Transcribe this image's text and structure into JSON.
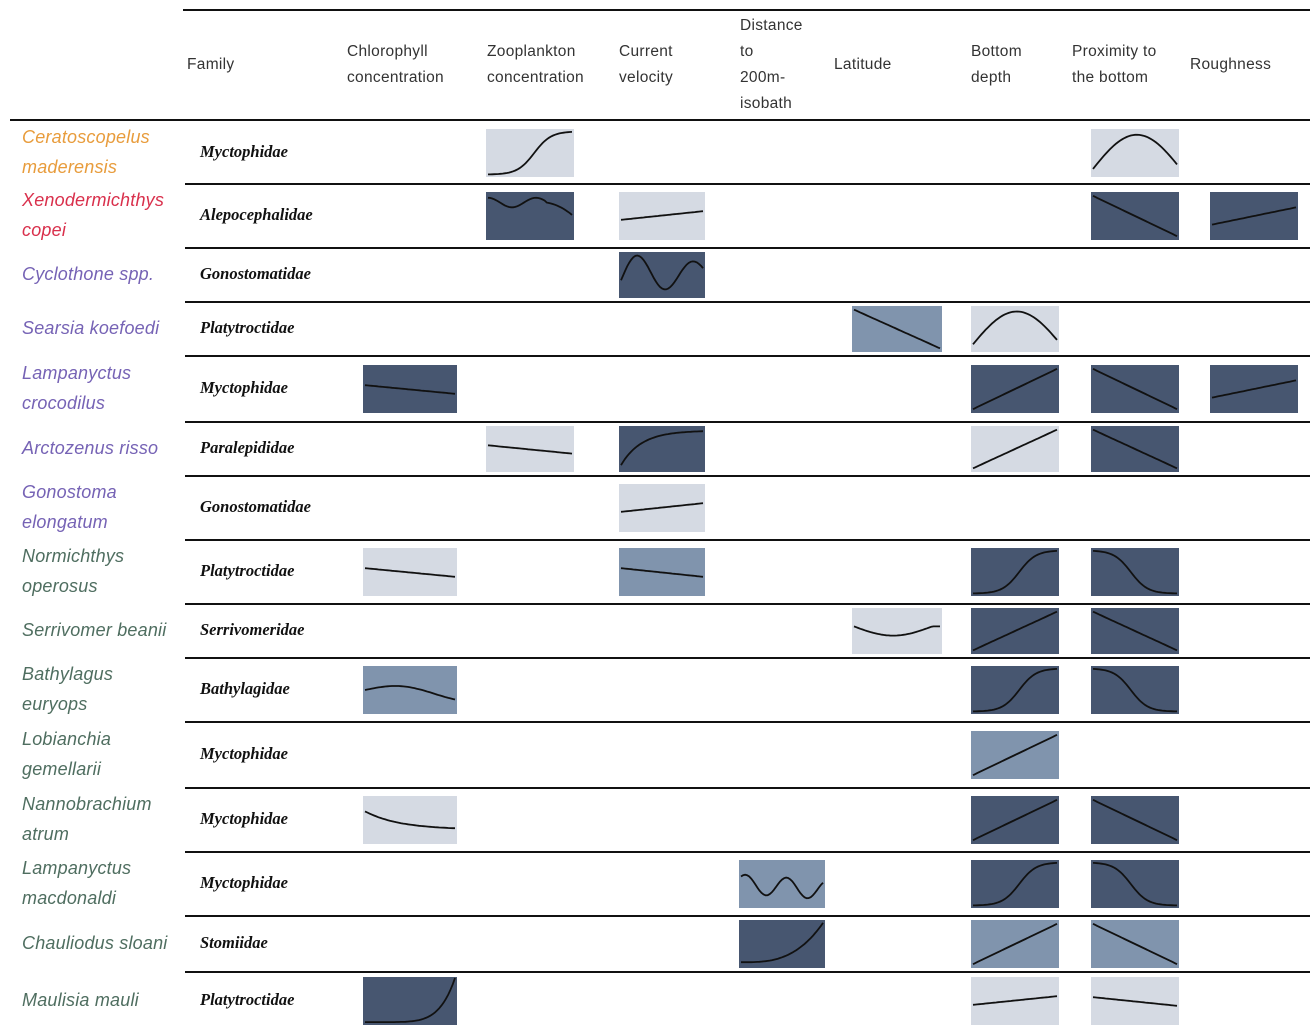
{
  "columns": {
    "family": [
      "Family"
    ],
    "chlorophyll": [
      "Chlorophyll",
      "concentration"
    ],
    "zooplankton": [
      "Zooplankton",
      "concentration"
    ],
    "current": [
      "Current",
      "velocity"
    ],
    "distance": [
      "Distance",
      "to",
      "200m-",
      "isobath"
    ],
    "latitude": [
      "Latitude"
    ],
    "depth": [
      "Bottom",
      "depth"
    ],
    "proximity": [
      "Proximity to",
      "the bottom"
    ],
    "roughness": [
      "Roughness"
    ]
  },
  "shade_colors": {
    "light": "#d5dae3",
    "medium": "#8094ad",
    "dark": "#475670"
  },
  "group_colors": {
    "orange": "#e89c3c",
    "red": "#d9304c",
    "purple": "#7663b5",
    "green": "#4f6e60"
  },
  "rows": [
    {
      "species": [
        "Ceratoscopelus",
        "maderensis"
      ],
      "color": "orange",
      "family": "Myctophidae",
      "cells": {
        "zooplankton": {
          "shade": "light",
          "curve": "rise-s"
        },
        "proximity": {
          "shade": "light",
          "curve": "hump"
        }
      }
    },
    {
      "species": [
        "Xenodermichthys",
        "copei"
      ],
      "color": "red",
      "family": "Alepocephalidae",
      "cells": {
        "zooplankton": {
          "shade": "dark",
          "curve": "wavy-fall"
        },
        "current": {
          "shade": "light",
          "curve": "slight-rise"
        },
        "proximity": {
          "shade": "dark",
          "curve": "linear-fall"
        },
        "roughness": {
          "shade": "dark",
          "curve": "linear-rise-mild"
        }
      }
    },
    {
      "species": [
        "Cyclothone spp."
      ],
      "color": "purple",
      "family": "Gonostomatidae",
      "cells": {
        "current": {
          "shade": "dark",
          "curve": "oscillate"
        }
      }
    },
    {
      "species": [
        "Searsia koefoedi"
      ],
      "color": "purple",
      "family": "Platytroctidae",
      "cells": {
        "latitude": {
          "shade": "medium",
          "curve": "linear-fall"
        },
        "depth": {
          "shade": "light",
          "curve": "hump"
        }
      }
    },
    {
      "species": [
        "Lampanyctus",
        "crocodilus"
      ],
      "color": "purple",
      "family": "Myctophidae",
      "cells": {
        "chlorophyll": {
          "shade": "dark",
          "curve": "slight-fall"
        },
        "depth": {
          "shade": "dark",
          "curve": "linear-rise"
        },
        "proximity": {
          "shade": "dark",
          "curve": "linear-fall"
        },
        "roughness": {
          "shade": "dark",
          "curve": "linear-rise-mild"
        }
      }
    },
    {
      "species": [
        "Arctozenus risso"
      ],
      "color": "purple",
      "family": "Paralepididae",
      "cells": {
        "zooplankton": {
          "shade": "light",
          "curve": "slight-fall"
        },
        "current": {
          "shade": "dark",
          "curve": "saturate"
        },
        "depth": {
          "shade": "light",
          "curve": "linear-rise"
        },
        "proximity": {
          "shade": "dark",
          "curve": "linear-fall"
        }
      }
    },
    {
      "species": [
        "Gonostoma",
        "elongatum"
      ],
      "color": "purple",
      "family": "Gonostomatidae",
      "cells": {
        "current": {
          "shade": "light",
          "curve": "slight-rise"
        }
      }
    },
    {
      "species": [
        "Normichthys",
        "operosus"
      ],
      "color": "green",
      "family": "Platytroctidae",
      "cells": {
        "chlorophyll": {
          "shade": "light",
          "curve": "slight-fall"
        },
        "current": {
          "shade": "medium",
          "curve": "slight-fall"
        },
        "depth": {
          "shade": "dark",
          "curve": "rise-s"
        },
        "proximity": {
          "shade": "dark",
          "curve": "fall-s"
        }
      }
    },
    {
      "species": [
        "Serrivomer beanii"
      ],
      "color": "green",
      "family": "Serrivomeridae",
      "cells": {
        "latitude": {
          "shade": "light",
          "curve": "shallow-u"
        },
        "depth": {
          "shade": "dark",
          "curve": "linear-rise"
        },
        "proximity": {
          "shade": "dark",
          "curve": "linear-fall"
        }
      }
    },
    {
      "species": [
        "Bathylagus",
        "euryops"
      ],
      "color": "green",
      "family": "Bathylagidae",
      "cells": {
        "chlorophyll": {
          "shade": "medium",
          "curve": "gentle-hump"
        },
        "depth": {
          "shade": "dark",
          "curve": "rise-s"
        },
        "proximity": {
          "shade": "dark",
          "curve": "fall-s"
        }
      }
    },
    {
      "species": [
        "Lobianchia",
        "gemellarii"
      ],
      "color": "green",
      "family": "Myctophidae",
      "cells": {
        "depth": {
          "shade": "medium",
          "curve": "linear-rise"
        }
      }
    },
    {
      "species": [
        "Nannobrachium",
        "atrum"
      ],
      "color": "green",
      "family": "Myctophidae",
      "cells": {
        "chlorophyll": {
          "shade": "light",
          "curve": "decay"
        },
        "depth": {
          "shade": "dark",
          "curve": "linear-rise"
        },
        "proximity": {
          "shade": "dark",
          "curve": "linear-fall"
        }
      }
    },
    {
      "species": [
        "Lampanyctus",
        "macdonaldi"
      ],
      "color": "green",
      "family": "Myctophidae",
      "cells": {
        "distance": {
          "shade": "medium",
          "curve": "double-wave"
        },
        "depth": {
          "shade": "dark",
          "curve": "rise-s"
        },
        "proximity": {
          "shade": "dark",
          "curve": "fall-s"
        }
      }
    },
    {
      "species": [
        "Chauliodus sloani"
      ],
      "color": "green",
      "family": "Stomiidae",
      "cells": {
        "distance": {
          "shade": "dark",
          "curve": "exp-rise"
        },
        "depth": {
          "shade": "medium",
          "curve": "linear-rise"
        },
        "proximity": {
          "shade": "medium",
          "curve": "linear-fall"
        }
      }
    },
    {
      "species": [
        "Maulisia mauli"
      ],
      "color": "green",
      "family": "Platytroctidae",
      "cells": {
        "chlorophyll": {
          "shade": "dark",
          "curve": "exp-rise-steep"
        },
        "depth": {
          "shade": "light",
          "curve": "slight-rise"
        },
        "proximity": {
          "shade": "light",
          "curve": "slight-fall"
        }
      }
    }
  ]
}
